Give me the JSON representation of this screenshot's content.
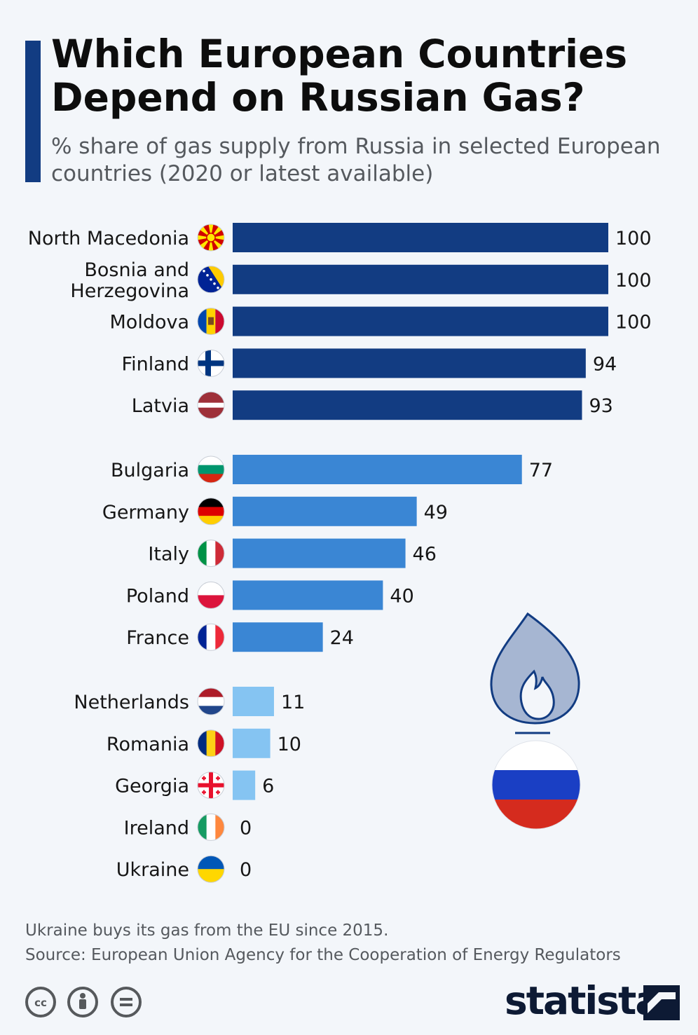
{
  "header": {
    "title": "Which European Countries Depend on Russian Gas?",
    "subtitle": "% share of gas supply from Russia in selected European countries (2020 or latest available)"
  },
  "colors": {
    "accent": "#123c82",
    "bar_high": "#123c82",
    "bar_mid": "#3a86d4",
    "bar_low": "#85c4f2",
    "background": "#f3f6fa"
  },
  "chart_data": {
    "type": "bar",
    "orientation": "horizontal",
    "title": "Which European Countries Depend on Russian Gas?",
    "subtitle": "% share of gas supply from Russia in selected European countries (2020 or latest available)",
    "xlim": [
      0,
      100
    ],
    "grid": false,
    "legend": "none",
    "groups": [
      {
        "color": "#123c82",
        "rows": [
          {
            "category": "North Macedonia",
            "label_lines": [
              "North Macedonia"
            ],
            "value": 100,
            "flag": "north-macedonia-flag-icon"
          },
          {
            "category": "Bosnia and Herzegovina",
            "label_lines": [
              "Bosnia and",
              "Herzegovina"
            ],
            "value": 100,
            "flag": "bosnia-flag-icon"
          },
          {
            "category": "Moldova",
            "label_lines": [
              "Moldova"
            ],
            "value": 100,
            "flag": "moldova-flag-icon"
          },
          {
            "category": "Finland",
            "label_lines": [
              "Finland"
            ],
            "value": 94,
            "flag": "finland-flag-icon"
          },
          {
            "category": "Latvia",
            "label_lines": [
              "Latvia"
            ],
            "value": 93,
            "flag": "latvia-flag-icon"
          }
        ]
      },
      {
        "color": "#3a86d4",
        "rows": [
          {
            "category": "Bulgaria",
            "label_lines": [
              "Bulgaria"
            ],
            "value": 77,
            "flag": "bulgaria-flag-icon"
          },
          {
            "category": "Germany",
            "label_lines": [
              "Germany"
            ],
            "value": 49,
            "flag": "germany-flag-icon"
          },
          {
            "category": "Italy",
            "label_lines": [
              "Italy"
            ],
            "value": 46,
            "flag": "italy-flag-icon"
          },
          {
            "category": "Poland",
            "label_lines": [
              "Poland"
            ],
            "value": 40,
            "flag": "poland-flag-icon"
          },
          {
            "category": "France",
            "label_lines": [
              "France"
            ],
            "value": 24,
            "flag": "france-flag-icon"
          }
        ]
      },
      {
        "color": "#85c4f2",
        "rows": [
          {
            "category": "Netherlands",
            "label_lines": [
              "Netherlands"
            ],
            "value": 11,
            "flag": "netherlands-flag-icon"
          },
          {
            "category": "Romania",
            "label_lines": [
              "Romania"
            ],
            "value": 10,
            "flag": "romania-flag-icon"
          },
          {
            "category": "Georgia",
            "label_lines": [
              "Georgia"
            ],
            "value": 6,
            "flag": "georgia-flag-icon"
          },
          {
            "category": "Ireland",
            "label_lines": [
              "Ireland"
            ],
            "value": 0,
            "flag": "ireland-flag-icon"
          },
          {
            "category": "Ukraine",
            "label_lines": [
              "Ukraine"
            ],
            "value": 0,
            "flag": "ukraine-flag-icon"
          }
        ]
      }
    ]
  },
  "footer": {
    "note": "Ukraine buys its gas from the EU since 2015.",
    "source": "Source: European Union Agency for the Cooperation of Energy Regulators",
    "brand": "statista",
    "license_icons": [
      "cc-icon",
      "attribution-icon",
      "no-derivatives-icon"
    ]
  },
  "illustration": {
    "icons": [
      "flame-icon",
      "russia-flag-icon"
    ]
  }
}
